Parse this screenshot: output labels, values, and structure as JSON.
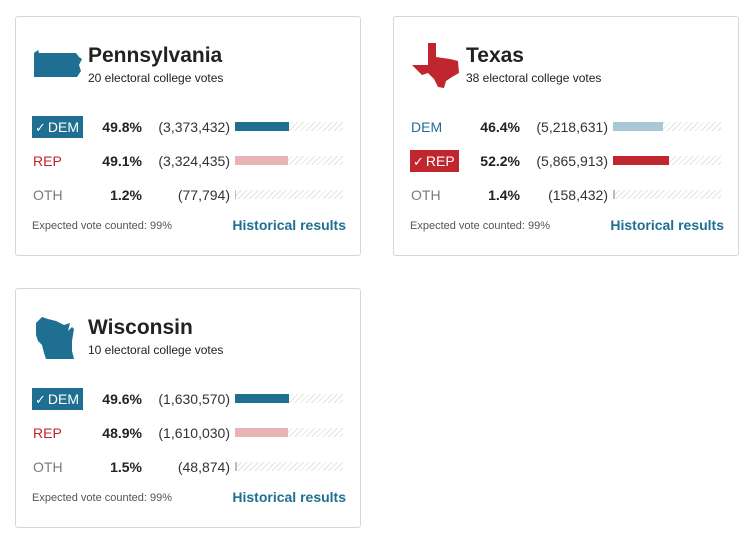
{
  "colors": {
    "dem": "#1f6f93",
    "rep": "#c0262d",
    "oth": "#7a7a7a",
    "link": "#1f6f93"
  },
  "cards": [
    {
      "state": "Pennsylvania",
      "state_icon": "pennsylvania-shape-icon",
      "state_color": "#1f6f93",
      "electoral": "20 electoral college votes",
      "rows": [
        {
          "party": "DEM",
          "winner": true,
          "pct": "49.8%",
          "votes": "(3,373,432)",
          "share": 49.8
        },
        {
          "party": "REP",
          "winner": false,
          "pct": "49.1%",
          "votes": "(3,324,435)",
          "share": 49.1
        },
        {
          "party": "OTH",
          "winner": false,
          "pct": "1.2%",
          "votes": "(77,794)",
          "share": 1.2
        }
      ],
      "expected": "Expected vote counted: 99%",
      "historical": "Historical results"
    },
    {
      "state": "Texas",
      "state_icon": "texas-shape-icon",
      "state_color": "#c0262d",
      "electoral": "38 electoral college votes",
      "rows": [
        {
          "party": "DEM",
          "winner": false,
          "pct": "46.4%",
          "votes": "(5,218,631)",
          "share": 46.4
        },
        {
          "party": "REP",
          "winner": true,
          "pct": "52.2%",
          "votes": "(5,865,913)",
          "share": 52.2
        },
        {
          "party": "OTH",
          "winner": false,
          "pct": "1.4%",
          "votes": "(158,432)",
          "share": 1.4
        }
      ],
      "expected": "Expected vote counted: 99%",
      "historical": "Historical results"
    },
    {
      "state": "Wisconsin",
      "state_icon": "wisconsin-shape-icon",
      "state_color": "#1f6f93",
      "electoral": "10 electoral college votes",
      "rows": [
        {
          "party": "DEM",
          "winner": true,
          "pct": "49.6%",
          "votes": "(1,630,570)",
          "share": 49.6
        },
        {
          "party": "REP",
          "winner": false,
          "pct": "48.9%",
          "votes": "(1,610,030)",
          "share": 48.9
        },
        {
          "party": "OTH",
          "winner": false,
          "pct": "1.5%",
          "votes": "(48,874)",
          "share": 1.5
        }
      ],
      "expected": "Expected vote counted: 99%",
      "historical": "Historical results"
    }
  ]
}
